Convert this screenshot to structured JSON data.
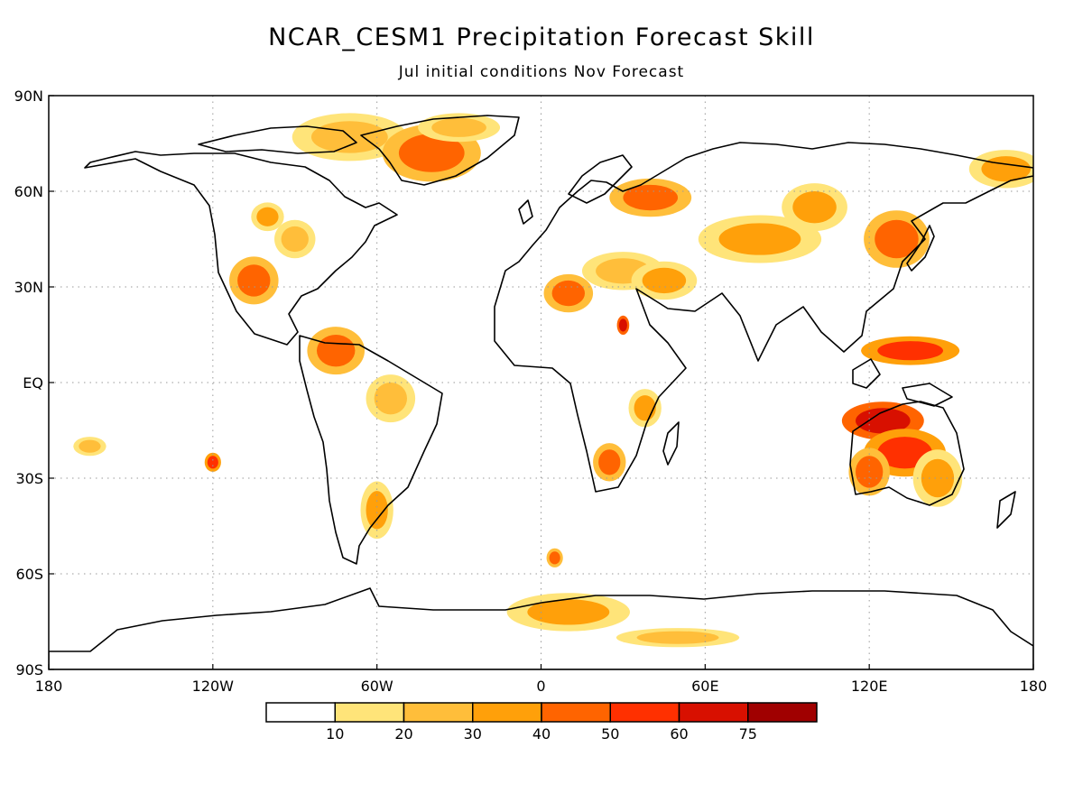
{
  "title": "NCAR_CESM1 Precipitation Forecast Skill",
  "subtitle": "Jul initial conditions   Nov Forecast",
  "map": {
    "lon_range": [
      -180,
      180
    ],
    "lat_range": [
      -90,
      90
    ],
    "grid": true,
    "lon_ticks": [
      {
        "value": -180,
        "label": "180"
      },
      {
        "value": -120,
        "label": "120W"
      },
      {
        "value": -60,
        "label": "60W"
      },
      {
        "value": 0,
        "label": "0"
      },
      {
        "value": 60,
        "label": "60E"
      },
      {
        "value": 120,
        "label": "120E"
      },
      {
        "value": 180,
        "label": "180"
      }
    ],
    "lat_ticks": [
      {
        "value": 90,
        "label": "90N"
      },
      {
        "value": 60,
        "label": "60N"
      },
      {
        "value": 30,
        "label": "30N"
      },
      {
        "value": 0,
        "label": "EQ"
      },
      {
        "value": -30,
        "label": "30S"
      },
      {
        "value": -60,
        "label": "60S"
      },
      {
        "value": -90,
        "label": "90S"
      }
    ]
  },
  "colorbar": {
    "colors": [
      "#ffffff",
      "#ffe479",
      "#ffbe3a",
      "#ffa00a",
      "#ff6400",
      "#ff3000",
      "#d81000",
      "#a00000"
    ],
    "labels": [
      "10",
      "20",
      "30",
      "40",
      "50",
      "60",
      "75"
    ]
  },
  "skill_regions": [
    {
      "lon": -70,
      "lat": 77,
      "rx": 14,
      "ry": 5,
      "level": 2
    },
    {
      "lon": -40,
      "lat": 72,
      "rx": 12,
      "ry": 6,
      "level": 4
    },
    {
      "lon": -30,
      "lat": 80,
      "rx": 10,
      "ry": 3,
      "level": 2
    },
    {
      "lon": -105,
      "lat": 32,
      "rx": 6,
      "ry": 5,
      "level": 4
    },
    {
      "lon": -90,
      "lat": 45,
      "rx": 5,
      "ry": 4,
      "level": 2
    },
    {
      "lon": -100,
      "lat": 52,
      "rx": 4,
      "ry": 3,
      "level": 3
    },
    {
      "lon": -75,
      "lat": 10,
      "rx": 7,
      "ry": 5,
      "level": 4
    },
    {
      "lon": -55,
      "lat": -5,
      "rx": 6,
      "ry": 5,
      "level": 2
    },
    {
      "lon": -60,
      "lat": -40,
      "rx": 4,
      "ry": 6,
      "level": 3
    },
    {
      "lon": -120,
      "lat": -25,
      "rx": 2,
      "ry": 2,
      "level": 5
    },
    {
      "lon": 10,
      "lat": 28,
      "rx": 6,
      "ry": 4,
      "level": 4
    },
    {
      "lon": 30,
      "lat": 35,
      "rx": 10,
      "ry": 4,
      "level": 2
    },
    {
      "lon": 45,
      "lat": 32,
      "rx": 8,
      "ry": 4,
      "level": 3
    },
    {
      "lon": 30,
      "lat": 18,
      "rx": 1.5,
      "ry": 2,
      "level": 6
    },
    {
      "lon": 25,
      "lat": -25,
      "rx": 4,
      "ry": 4,
      "level": 4
    },
    {
      "lon": 38,
      "lat": -8,
      "rx": 4,
      "ry": 4,
      "level": 3
    },
    {
      "lon": 40,
      "lat": 58,
      "rx": 10,
      "ry": 4,
      "level": 4
    },
    {
      "lon": 80,
      "lat": 45,
      "rx": 15,
      "ry": 5,
      "level": 3
    },
    {
      "lon": 100,
      "lat": 55,
      "rx": 8,
      "ry": 5,
      "level": 3
    },
    {
      "lon": 130,
      "lat": 45,
      "rx": 8,
      "ry": 6,
      "level": 4
    },
    {
      "lon": 135,
      "lat": 10,
      "rx": 12,
      "ry": 3,
      "level": 5
    },
    {
      "lon": 125,
      "lat": -12,
      "rx": 10,
      "ry": 4,
      "level": 6
    },
    {
      "lon": 133,
      "lat": -22,
      "rx": 10,
      "ry": 5,
      "level": 5
    },
    {
      "lon": 120,
      "lat": -28,
      "rx": 5,
      "ry": 5,
      "level": 4
    },
    {
      "lon": 145,
      "lat": -30,
      "rx": 6,
      "ry": 6,
      "level": 3
    },
    {
      "lon": 170,
      "lat": 67,
      "rx": 9,
      "ry": 4,
      "level": 3
    },
    {
      "lon": 10,
      "lat": -72,
      "rx": 15,
      "ry": 4,
      "level": 3
    },
    {
      "lon": 50,
      "lat": -80,
      "rx": 15,
      "ry": 2,
      "level": 2
    },
    {
      "lon": 5,
      "lat": -55,
      "rx": 2,
      "ry": 2,
      "level": 4
    },
    {
      "lon": -165,
      "lat": -20,
      "rx": 4,
      "ry": 2,
      "level": 2
    }
  ]
}
